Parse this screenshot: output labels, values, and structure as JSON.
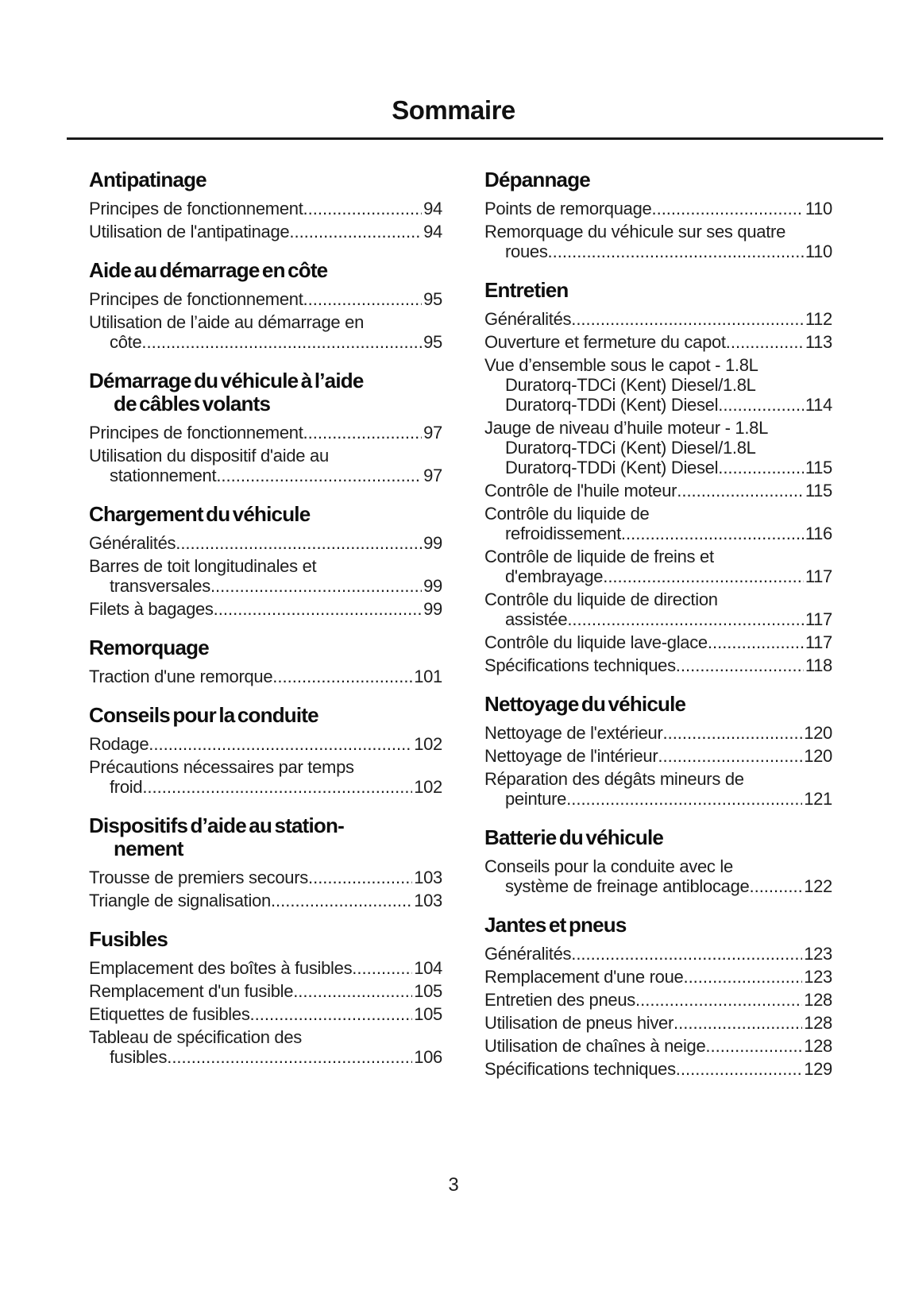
{
  "document": {
    "title": "Sommaire",
    "page_number": "3"
  },
  "colors": {
    "background": "#ffffff",
    "text": "#1a1a1a"
  },
  "toc": {
    "columns": [
      {
        "sections": [
          {
            "heading": "Antipatinage",
            "entries": [
              {
                "label": "Principes de fonctionnement",
                "page": "94"
              },
              {
                "label": "Utilisation de l'antipatinage",
                "page": "94"
              }
            ]
          },
          {
            "heading": "Aide au démarrage en côte",
            "entries": [
              {
                "label": "Principes de fonctionnement",
                "page": "95"
              },
              {
                "label": "Utilisation de l’aide au démarrage en\ncôte",
                "page": "95"
              }
            ]
          },
          {
            "heading": "Démarrage du véhicule à l’aide\nde câbles volants",
            "entries": [
              {
                "label": "Principes de fonctionnement",
                "page": "97"
              },
              {
                "label": "Utilisation du dispositif d'aide au\nstationnement",
                "page": "97"
              }
            ]
          },
          {
            "heading": "Chargement du véhicule",
            "entries": [
              {
                "label": "Généralités",
                "page": "99"
              },
              {
                "label": "Barres de toit longitudinales et\ntransversales",
                "page": "99"
              },
              {
                "label": "Filets à bagages",
                "page": "99"
              }
            ]
          },
          {
            "heading": "Remorquage",
            "entries": [
              {
                "label": "Traction d'une remorque",
                "page": "101"
              }
            ]
          },
          {
            "heading": "Conseils pour la conduite",
            "entries": [
              {
                "label": "Rodage",
                "page": "102"
              },
              {
                "label": "Précautions nécessaires par temps\nfroid",
                "page": "102"
              }
            ]
          },
          {
            "heading": "Dispositifs d’aide au station-\nnement",
            "entries": [
              {
                "label": "Trousse de premiers secours",
                "page": "103"
              },
              {
                "label": "Triangle de signalisation",
                "page": "103"
              }
            ]
          },
          {
            "heading": "Fusibles",
            "entries": [
              {
                "label": "Emplacement des boîtes à fusibles",
                "page": "104"
              },
              {
                "label": "Remplacement d'un fusible",
                "page": "105"
              },
              {
                "label": "Etiquettes de fusibles",
                "page": "105"
              },
              {
                "label": "Tableau de spécification des\nfusibles",
                "page": "106"
              }
            ]
          }
        ]
      },
      {
        "sections": [
          {
            "heading": "Dépannage",
            "entries": [
              {
                "label": "Points de remorquage",
                "page": "110"
              },
              {
                "label": "Remorquage du véhicule sur ses quatre\nroues",
                "page": "110"
              }
            ]
          },
          {
            "heading": "Entretien",
            "entries": [
              {
                "label": "Généralités",
                "page": "112"
              },
              {
                "label": "Ouverture et fermeture du capot",
                "page": "113"
              },
              {
                "label": "Vue d’ensemble sous le capot - 1.8L\nDuratorq-TDCi (Kent) Diesel/1.8L\nDuratorq-TDDi (Kent) Diesel",
                "page": "114"
              },
              {
                "label": "Jauge de niveau d’huile moteur - 1.8L\nDuratorq-TDCi (Kent) Diesel/1.8L\nDuratorq-TDDi (Kent) Diesel",
                "page": "115"
              },
              {
                "label": "Contrôle de l'huile moteur",
                "page": "115"
              },
              {
                "label": "Contrôle du liquide de\nrefroidissement",
                "page": "116"
              },
              {
                "label": "Contrôle de liquide de freins et\nd'embrayage",
                "page": "117"
              },
              {
                "label": "Contrôle du liquide de direction\nassistée",
                "page": "117"
              },
              {
                "label": "Contrôle du liquide lave-glace",
                "page": "117"
              },
              {
                "label": "Spécifications techniques",
                "page": "118"
              }
            ]
          },
          {
            "heading": "Nettoyage du véhicule",
            "entries": [
              {
                "label": "Nettoyage de l'extérieur",
                "page": "120"
              },
              {
                "label": "Nettoyage de l'intérieur",
                "page": "120"
              },
              {
                "label": "Réparation des dégâts mineurs de\npeinture",
                "page": "121"
              }
            ]
          },
          {
            "heading": "Batterie du véhicule",
            "entries": [
              {
                "label": "Conseils pour la conduite avec le\nsystème de freinage antiblocage",
                "page": "122"
              }
            ]
          },
          {
            "heading": "Jantes et pneus",
            "entries": [
              {
                "label": "Généralités",
                "page": "123"
              },
              {
                "label": "Remplacement d'une roue",
                "page": "123"
              },
              {
                "label": "Entretien des pneus",
                "page": "128"
              },
              {
                "label": "Utilisation de pneus hiver",
                "page": "128"
              },
              {
                "label": "Utilisation de chaînes à neige",
                "page": "128"
              },
              {
                "label": "Spécifications techniques",
                "page": "129"
              }
            ]
          }
        ]
      }
    ]
  }
}
